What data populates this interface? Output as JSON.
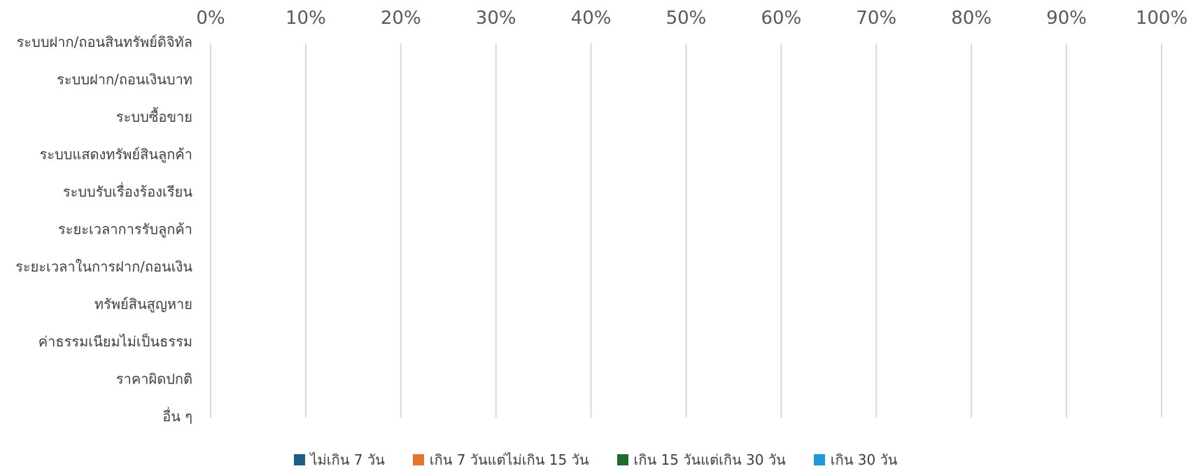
{
  "chart_data": {
    "type": "bar",
    "orientation": "horizontal",
    "stacked": true,
    "percent_stacked": true,
    "categories": [
      "ระบบฝาก/ถอนสินทรัพย์ดิจิทัล",
      "ระบบฝาก/ถอนเงินบาท",
      "ระบบซื้อขาย",
      "ระบบแสดงทรัพย์สินลูกค้า",
      "ระบบรับเรื่องร้องเรียน",
      "ระยะเวลาการรับลูกค้า",
      "ระยะเวลาในการฝาก/ถอนเงิน",
      "ทรัพย์สินสูญหาย",
      "ค่าธรรมเนียมไม่เป็นธรรม",
      "ราคาผิดปกติ",
      "อื่น ๆ"
    ],
    "series": [
      {
        "name": "ไม่เกิน 7 วัน",
        "color": "#1f5c85",
        "values": [
          0,
          0,
          0,
          0,
          0,
          0,
          0,
          0,
          0,
          0,
          0
        ]
      },
      {
        "name": "เกิน 7 วันแต่ไม่เกิน 15 วัน",
        "color": "#e8742c",
        "values": [
          0,
          0,
          0,
          0,
          0,
          0,
          0,
          0,
          0,
          0,
          0
        ]
      },
      {
        "name": "เกิน 15 วันแต่เกิน 30 วัน",
        "color": "#1e6b2b",
        "values": [
          0,
          0,
          0,
          0,
          0,
          0,
          0,
          0,
          0,
          0,
          0
        ]
      },
      {
        "name": "เกิน 30 วัน",
        "color": "#1a9ad9",
        "values": [
          0,
          0,
          0,
          0,
          0,
          0,
          0,
          0,
          0,
          0,
          0
        ]
      }
    ],
    "x_ticks": [
      "0%",
      "10%",
      "20%",
      "30%",
      "40%",
      "50%",
      "60%",
      "70%",
      "80%",
      "90%",
      "100%"
    ],
    "xlim": [
      0,
      100
    ],
    "x_axis_position": "top",
    "grid": true,
    "grid_color": "#d9d9d9",
    "legend_position": "bottom"
  }
}
